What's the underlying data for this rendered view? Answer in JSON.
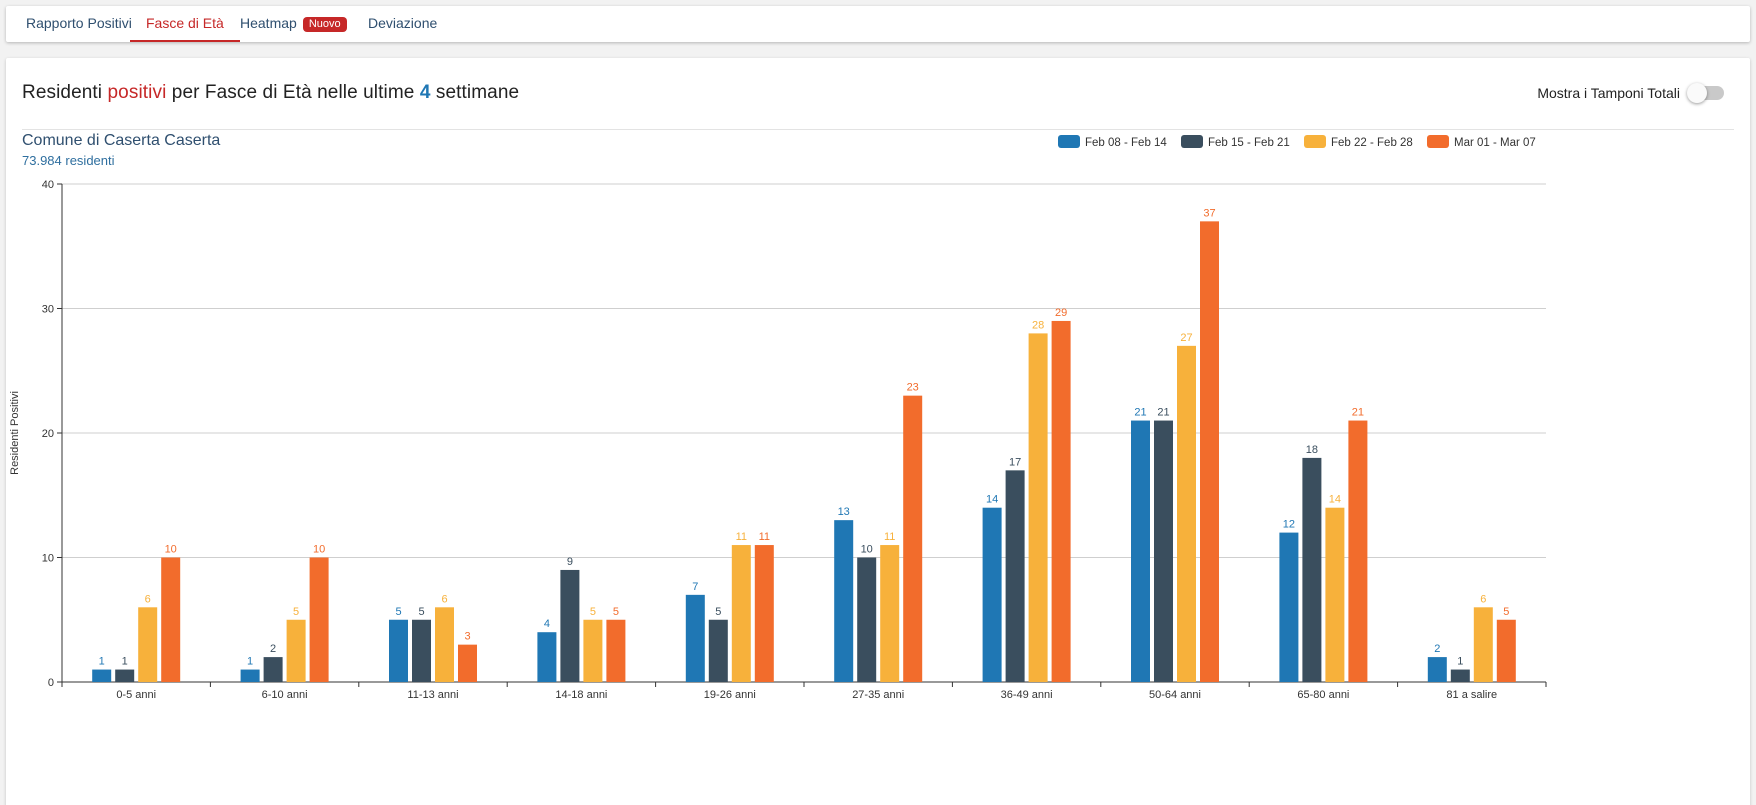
{
  "tabs": [
    {
      "label": "Rapporto Positivi",
      "active": false
    },
    {
      "label": "Fasce di Età",
      "active": true
    },
    {
      "label": "Heatmap",
      "badge": "Nuovo",
      "active": false
    },
    {
      "label": "Deviazione",
      "active": false
    }
  ],
  "header": {
    "title_part1": "Residenti",
    "title_highlight": "positivi",
    "title_part2": "per Fasce di Età nelle ultime",
    "title_weeks": "4",
    "title_part3": "settimane",
    "toggle_label": "Mostra i Tamponi Totali",
    "toggle_on": false
  },
  "colors": {
    "accent_red": "#c62828",
    "accent_blue": "#1f77b4",
    "series": [
      "#1f77b4",
      "#3a4e5e",
      "#f7b13b",
      "#f26c2c"
    ]
  },
  "chart_data": {
    "type": "bar",
    "subtitle": "Comune di Caserta Caserta",
    "subtitle2": "73.984 residenti",
    "ylabel": "Residenti Positivi",
    "xlabel": "",
    "ylim": [
      0,
      40
    ],
    "yticks": [
      0,
      10,
      20,
      30,
      40
    ],
    "grid": true,
    "legend_position": "top-right",
    "categories": [
      "0-5 anni",
      "6-10 anni",
      "11-13 anni",
      "14-18 anni",
      "19-26 anni",
      "27-35 anni",
      "36-49 anni",
      "50-64 anni",
      "65-80 anni",
      "81 a salire"
    ],
    "series": [
      {
        "name": "Feb 08 - Feb 14",
        "values": [
          1,
          1,
          5,
          4,
          7,
          13,
          14,
          21,
          12,
          2
        ]
      },
      {
        "name": "Feb 15 - Feb 21",
        "values": [
          1,
          2,
          5,
          9,
          5,
          10,
          17,
          21,
          18,
          1
        ]
      },
      {
        "name": "Feb 22 - Feb 28",
        "values": [
          6,
          5,
          6,
          5,
          11,
          11,
          28,
          27,
          14,
          6
        ]
      },
      {
        "name": "Mar 01 - Mar 07",
        "values": [
          10,
          10,
          3,
          5,
          11,
          23,
          29,
          37,
          21,
          5
        ]
      }
    ]
  }
}
